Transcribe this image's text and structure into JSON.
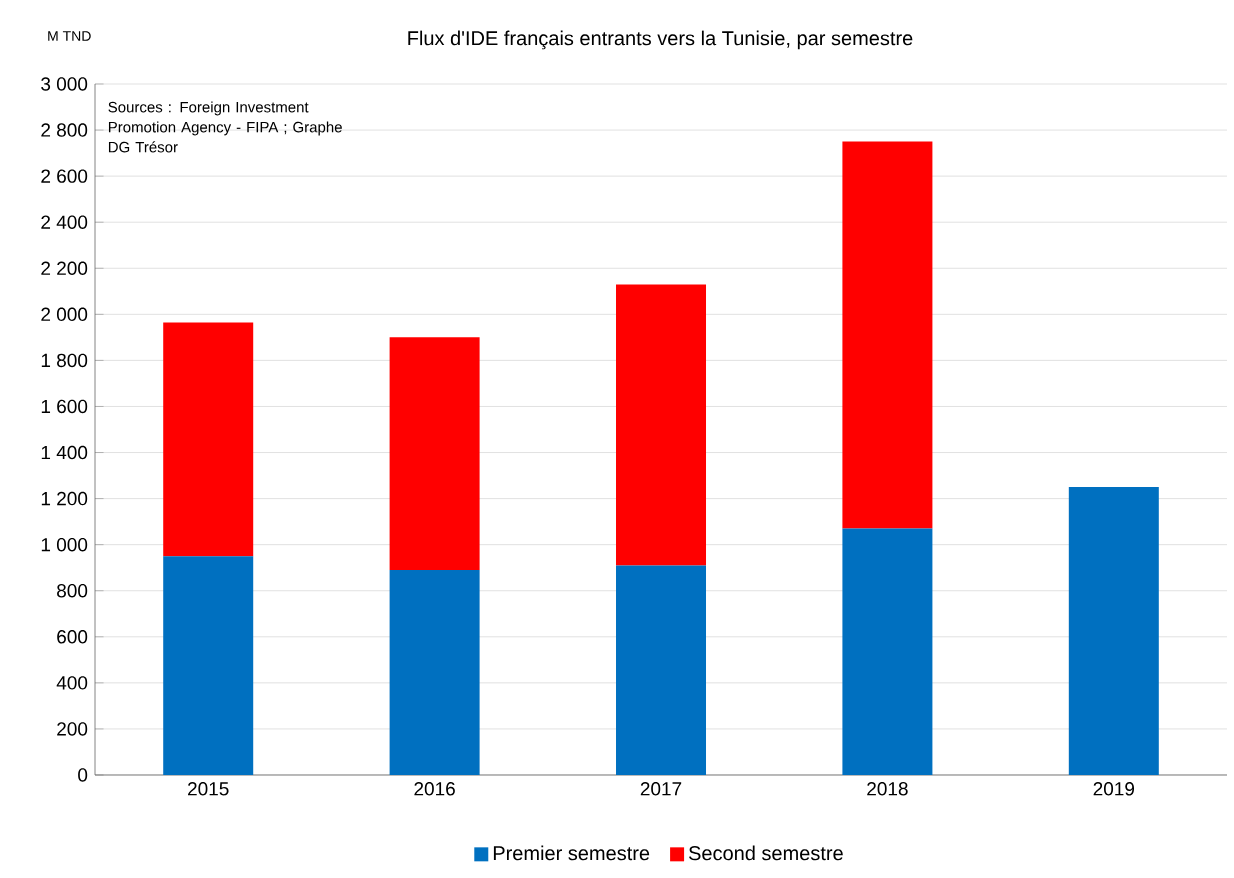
{
  "chart_data": {
    "type": "bar",
    "stacked": true,
    "title": "Flux d'IDE français entrants vers la Tunisie, par semestre",
    "ylabel": "M TND",
    "annotations": [
      "Sources : Foreign Investment Promotion Agency - FIPA ; Graphe DG Trésor"
    ],
    "categories": [
      "2015",
      "2016",
      "2017",
      "2018",
      "2019"
    ],
    "series": [
      {
        "name": "Premier semestre",
        "color": "#0070c0",
        "values": [
          950,
          890,
          910,
          1070,
          1250
        ]
      },
      {
        "name": "Second semestre",
        "color": "#ff0000",
        "values": [
          1015,
          1010,
          1220,
          1680,
          null
        ]
      }
    ],
    "ylim": [
      0,
      3000
    ],
    "yticks": [
      0,
      200,
      400,
      600,
      800,
      {
        "value": 1000,
        "label": "1 000"
      },
      {
        "value": 1200,
        "label": "1 200"
      },
      {
        "value": 1400,
        "label": "1 400"
      },
      {
        "value": 1600,
        "label": "1 600"
      },
      {
        "value": 1800,
        "label": "1 800"
      },
      {
        "value": 2000,
        "label": "2 000"
      },
      {
        "value": 2200,
        "label": "2 200"
      },
      {
        "value": 2400,
        "label": "2 400"
      },
      {
        "value": 2600,
        "label": "2 600"
      },
      {
        "value": 2800,
        "label": "2 800"
      },
      {
        "value": 3000,
        "label": "3 000"
      }
    ],
    "grid": "y",
    "legend": "bottom"
  }
}
